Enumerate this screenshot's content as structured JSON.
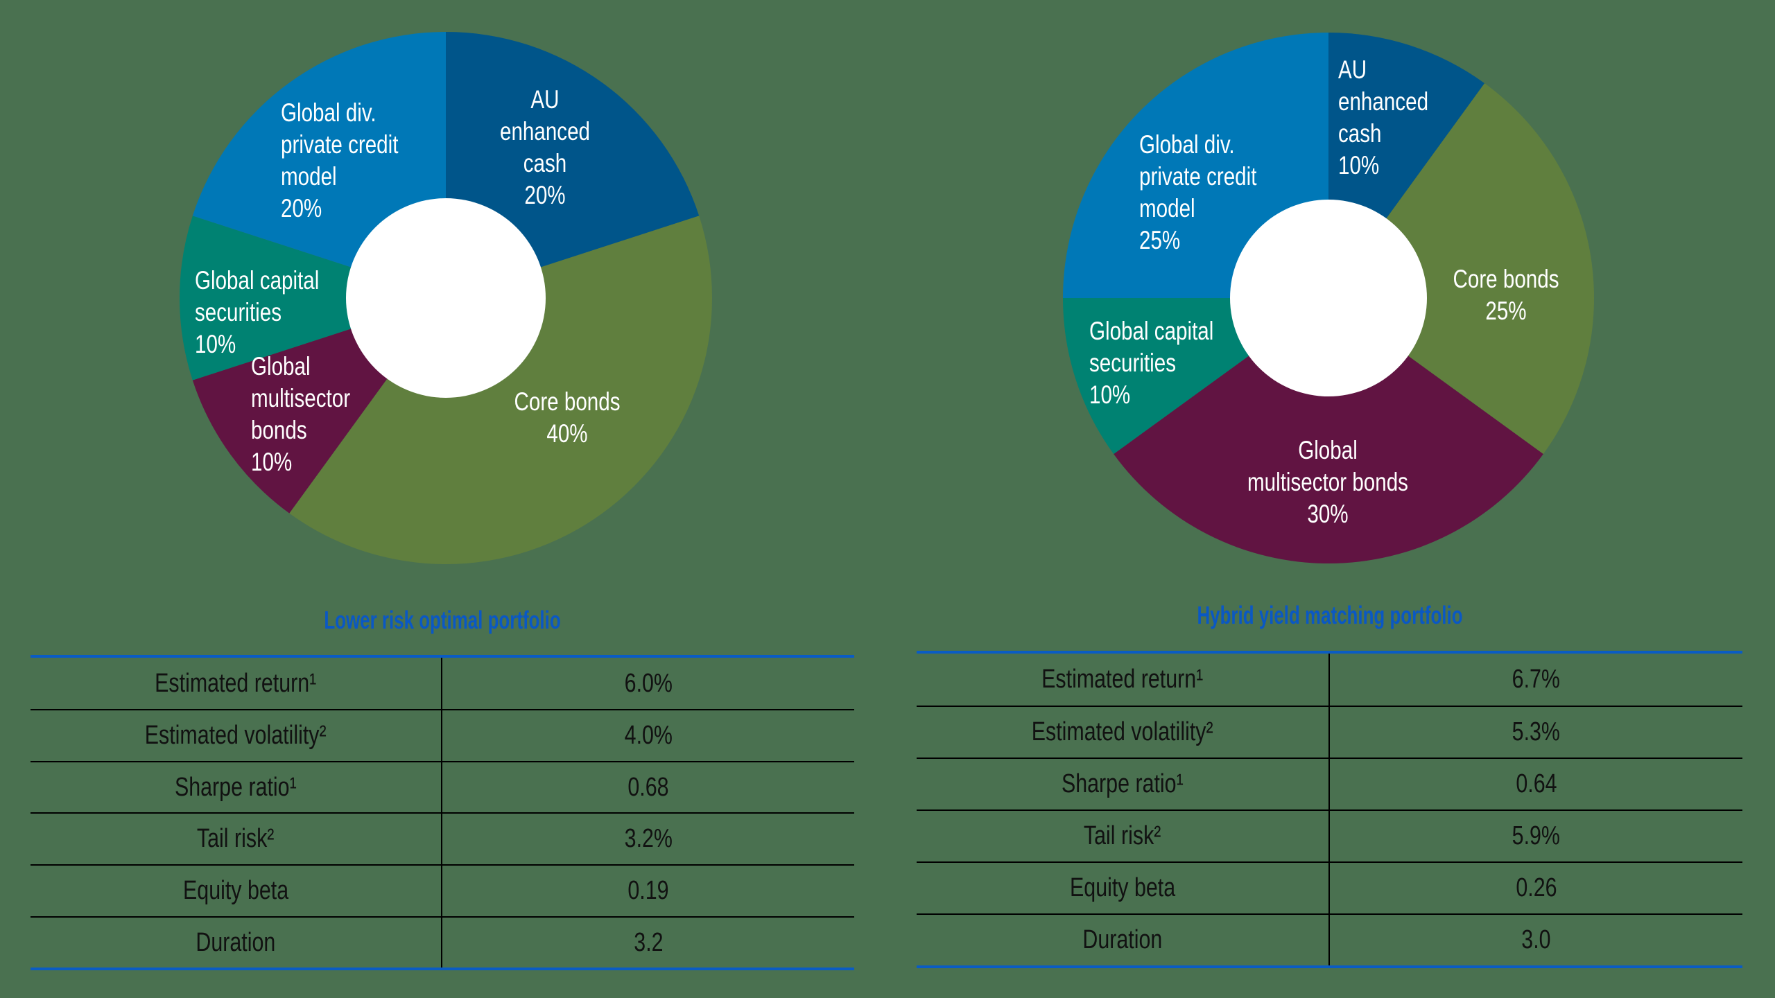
{
  "chart_data": [
    {
      "type": "pie",
      "variant": "donut",
      "title": "Lower risk optimal portfolio",
      "start_angle_deg": 0,
      "direction": "clockwise",
      "slices": [
        {
          "label": "AU enhanced cash",
          "value": 20,
          "color": "#00558A"
        },
        {
          "label": "Core bonds",
          "value": 40,
          "color": "#607F3E"
        },
        {
          "label": "Global multisector bonds",
          "value": 10,
          "color": "#611442"
        },
        {
          "label": "Global capital securities",
          "value": 10,
          "color": "#008272"
        },
        {
          "label": "Global div. private credit model",
          "value": 20,
          "color": "#0078B7"
        }
      ],
      "metrics": [
        {
          "name": "Estimated return¹",
          "value": "6.0%"
        },
        {
          "name": "Estimated volatility²",
          "value": "4.0%"
        },
        {
          "name": "Sharpe ratio¹",
          "value": "0.68"
        },
        {
          "name": "Tail risk²",
          "value": "3.2%"
        },
        {
          "name": "Equity beta",
          "value": "0.19"
        },
        {
          "name": "Duration",
          "value": "3.2"
        }
      ]
    },
    {
      "type": "pie",
      "variant": "donut",
      "title": "Hybrid yield matching portfolio",
      "start_angle_deg": 0,
      "direction": "clockwise",
      "slices": [
        {
          "label": "AU enhanced cash",
          "value": 10,
          "color": "#00558A"
        },
        {
          "label": "Core bonds",
          "value": 25,
          "color": "#607F3E"
        },
        {
          "label": "Global multisector bonds",
          "value": 30,
          "color": "#611442"
        },
        {
          "label": "Global capital securities",
          "value": 10,
          "color": "#008272"
        },
        {
          "label": "Global div. private credit model",
          "value": 25,
          "color": "#0078B7"
        }
      ],
      "metrics": [
        {
          "name": "Estimated return¹",
          "value": "6.7%"
        },
        {
          "name": "Estimated volatility²",
          "value": "5.3%"
        },
        {
          "name": "Sharpe ratio¹",
          "value": "0.64"
        },
        {
          "name": "Tail risk²",
          "value": "5.9%"
        },
        {
          "name": "Equity beta",
          "value": "0.26"
        },
        {
          "name": "Duration",
          "value": "3.0"
        }
      ]
    }
  ],
  "colors": {
    "background": "#4A7150",
    "title": "#0A58C4",
    "table_rule": "#0A5CC4",
    "hole": "#FFFFFF"
  },
  "left": {
    "title": "Lower risk optimal portfolio",
    "labels": {
      "au_cash": [
        "AU",
        "enhanced",
        "cash",
        "20%"
      ],
      "private_credit": [
        "Global div.",
        "private credit",
        "model",
        "20%"
      ],
      "capital": [
        "Global capital",
        "securities",
        "10%"
      ],
      "multisector": [
        "Global",
        "multisector",
        "bonds",
        "10%"
      ],
      "core": [
        "Core bonds",
        "40%"
      ]
    },
    "table": {
      "rows": [
        {
          "label": "Estimated return¹",
          "value": "6.0%"
        },
        {
          "label": "Estimated volatility²",
          "value": "4.0%"
        },
        {
          "label": "Sharpe ratio¹",
          "value": "0.68"
        },
        {
          "label": "Tail risk²",
          "value": "3.2%"
        },
        {
          "label": "Equity beta",
          "value": "0.19"
        },
        {
          "label": "Duration",
          "value": "3.2"
        }
      ]
    }
  },
  "right": {
    "title": "Hybrid yield matching portfolio",
    "labels": {
      "au_cash": [
        "AU",
        "enhanced",
        "cash",
        "10%"
      ],
      "private_credit": [
        "Global div.",
        "private credit",
        "model",
        "25%"
      ],
      "capital": [
        "Global capital",
        "securities",
        "10%"
      ],
      "multisector": [
        "Global",
        "multisector bonds",
        "30%"
      ],
      "core": [
        "Core bonds",
        "25%"
      ]
    },
    "table": {
      "rows": [
        {
          "label": "Estimated return¹",
          "value": "6.7%"
        },
        {
          "label": "Estimated volatility²",
          "value": "5.3%"
        },
        {
          "label": "Sharpe ratio¹",
          "value": "0.64"
        },
        {
          "label": "Tail risk²",
          "value": "5.9%"
        },
        {
          "label": "Equity beta",
          "value": "0.26"
        },
        {
          "label": "Duration",
          "value": "3.0"
        }
      ]
    }
  }
}
